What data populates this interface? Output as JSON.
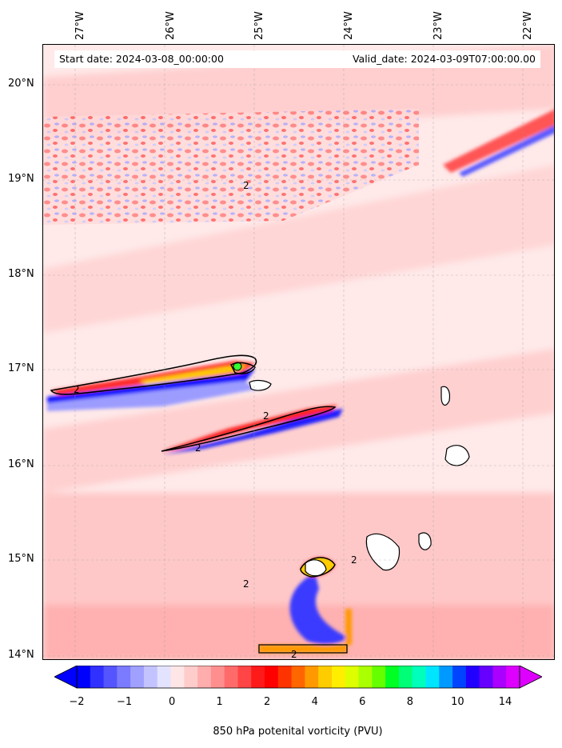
{
  "header": {
    "start_date": "Start date: 2024-03-08_00:00:00",
    "valid_date": "Valid_date: 2024-03-09T07:00:00.00"
  },
  "axes": {
    "lon_labels": [
      "27°W",
      "26°W",
      "25°W",
      "24°W",
      "23°W",
      "22°W"
    ],
    "lat_labels": [
      "20°N",
      "19°N",
      "18°N",
      "17°N",
      "16°N",
      "15°N",
      "14°N"
    ],
    "lon_range": [
      -27.35,
      -21.6
    ],
    "lat_range": [
      13.95,
      20.45
    ]
  },
  "colorbar": {
    "title": "850 hPa potenital vorticity (PVU)",
    "tick_labels": [
      "−2",
      "−1",
      "0",
      "1",
      "2",
      "4",
      "6",
      "8",
      "10",
      "14"
    ],
    "colors": [
      "#0000ff",
      "#3030ff",
      "#5555ff",
      "#7b7bff",
      "#a0a0ff",
      "#c3c3ff",
      "#e3e3ff",
      "#ffe6e6",
      "#ffcccc",
      "#ffadad",
      "#ff8f8f",
      "#ff6b6b",
      "#ff4545",
      "#ff1a1a",
      "#ff0000",
      "#ff3300",
      "#ff6600",
      "#ff9900",
      "#ffcc00",
      "#ffee00",
      "#ddff00",
      "#aaff00",
      "#66ff00",
      "#00ff22",
      "#00ff77",
      "#00ffbb",
      "#00e5ff",
      "#0099ff",
      "#0044ff",
      "#2200ff",
      "#6600ff",
      "#aa00ff",
      "#dd00ff"
    ],
    "contour_level": "2"
  },
  "chart_data": {
    "type": "heatmap",
    "variable": "850 hPa potenital vorticity (PVU)",
    "x_range": [
      -27.35,
      -21.6
    ],
    "y_range": [
      13.95,
      20.45
    ],
    "contour_labels": [
      "2",
      "2",
      "2",
      "2",
      "2",
      "2",
      "2"
    ]
  }
}
